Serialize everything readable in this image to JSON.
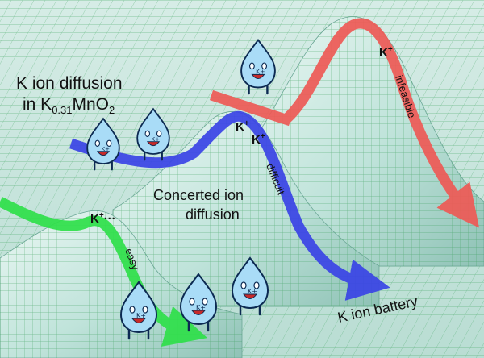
{
  "title": {
    "line1": "K ion diffusion",
    "line2_prefix": "in K",
    "line2_sub": "0.31",
    "line2_mid": "MnO",
    "line2_sub2": "2"
  },
  "labels": {
    "concerted_line1": "Concerted ion",
    "concerted_line2": "diffusion",
    "battery": "K ion battery"
  },
  "paths": {
    "green": {
      "ion": "K",
      "charge": "+",
      "dots": "···",
      "tag": "easy",
      "color": "#2fe04a"
    },
    "blue": {
      "ion1": "K",
      "ion2": "K",
      "charge": "+",
      "tag": "difficult",
      "color": "#3a44e6"
    },
    "red": {
      "ion": "K",
      "charge": "+",
      "tag": "infeasible",
      "color": "#ee5a56"
    }
  },
  "mascots": {
    "mascot_label": "K",
    "mascot_charge": "+",
    "sweat": "··"
  },
  "colors": {
    "surface": "#bfe3da",
    "grid": "#3aa45a",
    "mascot_body": "#a9dcf7",
    "mascot_outline": "#0c2a52"
  }
}
